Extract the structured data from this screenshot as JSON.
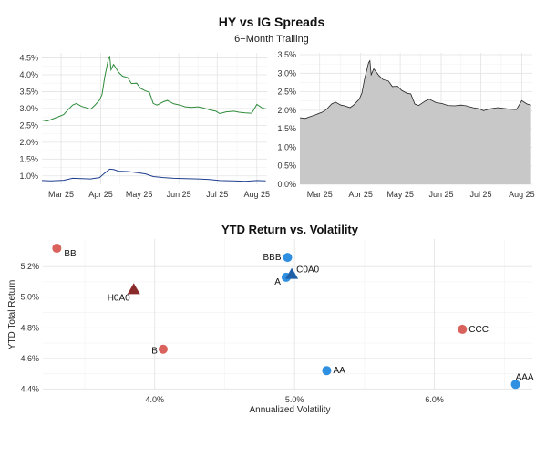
{
  "figure": {
    "title": "HY vs IG Spreads",
    "subtitle": "6−Month Trailing"
  },
  "chart_data": [
    {
      "type": "line",
      "panel": "top-left",
      "title": "",
      "xlabel": "",
      "ylabel": "",
      "x_tick_labels": [
        "Mar 25",
        "Apr 25",
        "May 25",
        "Jun 25",
        "Jul 25",
        "Aug 25"
      ],
      "y_tick_labels": [
        "1.0%",
        "1.5%",
        "2.0%",
        "2.5%",
        "3.0%",
        "3.5%",
        "4.0%",
        "4.5%"
      ],
      "ylim": [
        0.75,
        4.65
      ],
      "grid": true,
      "series": [
        {
          "color": "#2e8b3a",
          "points": [
            [
              "2025-02-14",
              2.66
            ],
            [
              "2025-02-18",
              2.63
            ],
            [
              "2025-02-21",
              2.67
            ],
            [
              "2025-02-26",
              2.74
            ],
            [
              "2025-03-03",
              2.82
            ],
            [
              "2025-03-06",
              2.95
            ],
            [
              "2025-03-10",
              3.1
            ],
            [
              "2025-03-13",
              3.15
            ],
            [
              "2025-03-17",
              3.06
            ],
            [
              "2025-03-20",
              3.03
            ],
            [
              "2025-03-24",
              2.98
            ],
            [
              "2025-03-27",
              3.08
            ],
            [
              "2025-03-31",
              3.25
            ],
            [
              "2025-04-02",
              3.42
            ],
            [
              "2025-04-04",
              3.92
            ],
            [
              "2025-04-07",
              4.48
            ],
            [
              "2025-04-08",
              4.54
            ],
            [
              "2025-04-09",
              4.15
            ],
            [
              "2025-04-11",
              4.31
            ],
            [
              "2025-04-15",
              4.07
            ],
            [
              "2025-04-18",
              3.96
            ],
            [
              "2025-04-22",
              3.92
            ],
            [
              "2025-04-25",
              3.74
            ],
            [
              "2025-04-29",
              3.75
            ],
            [
              "2025-05-02",
              3.6
            ],
            [
              "2025-05-06",
              3.52
            ],
            [
              "2025-05-09",
              3.48
            ],
            [
              "2025-05-12",
              3.15
            ],
            [
              "2025-05-15",
              3.1
            ],
            [
              "2025-05-20",
              3.2
            ],
            [
              "2025-05-23",
              3.24
            ],
            [
              "2025-05-28",
              3.14
            ],
            [
              "2025-06-02",
              3.1
            ],
            [
              "2025-06-06",
              3.05
            ],
            [
              "2025-06-11",
              3.03
            ],
            [
              "2025-06-16",
              3.05
            ],
            [
              "2025-06-20",
              3.02
            ],
            [
              "2025-06-25",
              2.96
            ],
            [
              "2025-06-30",
              2.92
            ],
            [
              "2025-07-03",
              2.85
            ],
            [
              "2025-07-08",
              2.9
            ],
            [
              "2025-07-14",
              2.92
            ],
            [
              "2025-07-18",
              2.89
            ],
            [
              "2025-07-23",
              2.87
            ],
            [
              "2025-07-28",
              2.86
            ],
            [
              "2025-08-01",
              3.12
            ],
            [
              "2025-08-05",
              3.02
            ],
            [
              "2025-08-08",
              2.99
            ]
          ]
        },
        {
          "color": "#1f3f8f",
          "points": [
            [
              "2025-02-14",
              0.86
            ],
            [
              "2025-02-21",
              0.85
            ],
            [
              "2025-03-03",
              0.87
            ],
            [
              "2025-03-10",
              0.93
            ],
            [
              "2025-03-17",
              0.92
            ],
            [
              "2025-03-24",
              0.91
            ],
            [
              "2025-03-31",
              0.95
            ],
            [
              "2025-04-04",
              1.08
            ],
            [
              "2025-04-08",
              1.2
            ],
            [
              "2025-04-11",
              1.19
            ],
            [
              "2025-04-15",
              1.14
            ],
            [
              "2025-04-22",
              1.13
            ],
            [
              "2025-04-29",
              1.1
            ],
            [
              "2025-05-06",
              1.06
            ],
            [
              "2025-05-12",
              0.98
            ],
            [
              "2025-05-20",
              0.95
            ],
            [
              "2025-05-28",
              0.93
            ],
            [
              "2025-06-06",
              0.92
            ],
            [
              "2025-06-16",
              0.91
            ],
            [
              "2025-06-25",
              0.89
            ],
            [
              "2025-07-03",
              0.86
            ],
            [
              "2025-07-14",
              0.85
            ],
            [
              "2025-07-23",
              0.84
            ],
            [
              "2025-08-01",
              0.86
            ],
            [
              "2025-08-08",
              0.85
            ]
          ]
        }
      ]
    },
    {
      "type": "area",
      "panel": "top-right",
      "title": "",
      "xlabel": "",
      "ylabel": "",
      "x_tick_labels": [
        "Mar 25",
        "Apr 25",
        "May 25",
        "Jun 25",
        "Jul 25",
        "Aug 25"
      ],
      "y_tick_labels": [
        "0.0%",
        "0.5%",
        "1.0%",
        "1.5%",
        "2.0%",
        "2.5%",
        "3.0%",
        "3.5%"
      ],
      "ylim": [
        0,
        3.55
      ],
      "grid": true,
      "fill_color": "#c8c8c8",
      "series": [
        {
          "points": [
            [
              "2025-02-14",
              1.8
            ],
            [
              "2025-02-18",
              1.78
            ],
            [
              "2025-02-21",
              1.82
            ],
            [
              "2025-02-26",
              1.88
            ],
            [
              "2025-03-03",
              1.95
            ],
            [
              "2025-03-06",
              2.02
            ],
            [
              "2025-03-10",
              2.17
            ],
            [
              "2025-03-13",
              2.22
            ],
            [
              "2025-03-17",
              2.14
            ],
            [
              "2025-03-20",
              2.12
            ],
            [
              "2025-03-24",
              2.07
            ],
            [
              "2025-03-27",
              2.15
            ],
            [
              "2025-03-31",
              2.3
            ],
            [
              "2025-04-02",
              2.47
            ],
            [
              "2025-04-04",
              2.85
            ],
            [
              "2025-04-07",
              3.28
            ],
            [
              "2025-04-08",
              3.34
            ],
            [
              "2025-04-09",
              2.96
            ],
            [
              "2025-04-11",
              3.12
            ],
            [
              "2025-04-15",
              2.93
            ],
            [
              "2025-04-18",
              2.83
            ],
            [
              "2025-04-22",
              2.79
            ],
            [
              "2025-04-25",
              2.64
            ],
            [
              "2025-04-29",
              2.65
            ],
            [
              "2025-05-02",
              2.54
            ],
            [
              "2025-05-06",
              2.46
            ],
            [
              "2025-05-09",
              2.44
            ],
            [
              "2025-05-12",
              2.17
            ],
            [
              "2025-05-15",
              2.13
            ],
            [
              "2025-05-20",
              2.25
            ],
            [
              "2025-05-23",
              2.3
            ],
            [
              "2025-05-28",
              2.21
            ],
            [
              "2025-06-02",
              2.18
            ],
            [
              "2025-06-06",
              2.13
            ],
            [
              "2025-06-11",
              2.12
            ],
            [
              "2025-06-16",
              2.14
            ],
            [
              "2025-06-20",
              2.12
            ],
            [
              "2025-06-25",
              2.07
            ],
            [
              "2025-06-30",
              2.04
            ],
            [
              "2025-07-03",
              1.99
            ],
            [
              "2025-07-08",
              2.04
            ],
            [
              "2025-07-14",
              2.07
            ],
            [
              "2025-07-18",
              2.05
            ],
            [
              "2025-07-23",
              2.03
            ],
            [
              "2025-07-28",
              2.02
            ],
            [
              "2025-08-01",
              2.26
            ],
            [
              "2025-08-05",
              2.17
            ],
            [
              "2025-08-08",
              2.14
            ]
          ]
        }
      ]
    },
    {
      "type": "scatter",
      "panel": "bottom",
      "title": "YTD Return vs. Volatility",
      "xlabel": "Annualized Volatility",
      "ylabel": "YTD Total Return",
      "xlim": [
        3.2,
        6.7
      ],
      "ylim": [
        4.39,
        5.38
      ],
      "x_tick_labels": [
        "4.0%",
        "5.0%",
        "6.0%"
      ],
      "x_ticks": [
        4.0,
        5.0,
        6.0
      ],
      "y_tick_labels": [
        "4.4%",
        "4.6%",
        "4.8%",
        "5.0%",
        "5.2%"
      ],
      "y_ticks": [
        4.4,
        4.6,
        4.8,
        5.0,
        5.2
      ],
      "grid": true,
      "points": [
        {
          "label": "BB",
          "x": 3.3,
          "y": 5.32,
          "shape": "circle",
          "color": "#d9625c",
          "label_pos": "right"
        },
        {
          "label": "H0A0",
          "x": 3.85,
          "y": 5.05,
          "shape": "triangle",
          "color": "#8b2a2a",
          "label_pos": "left"
        },
        {
          "label": "B",
          "x": 4.06,
          "y": 4.66,
          "shape": "circle",
          "color": "#d9625c",
          "label_pos": "left"
        },
        {
          "label": "BBB",
          "x": 4.95,
          "y": 5.26,
          "shape": "circle",
          "color": "#2f8fe0",
          "label_pos": "left"
        },
        {
          "label": "A",
          "x": 4.94,
          "y": 5.13,
          "shape": "circle",
          "color": "#2f8fe0",
          "label_pos": "left"
        },
        {
          "label": "C0A0",
          "x": 4.98,
          "y": 5.15,
          "shape": "triangle",
          "color": "#1f5fa8",
          "label_pos": "right"
        },
        {
          "label": "AA",
          "x": 5.23,
          "y": 4.52,
          "shape": "circle",
          "color": "#2f8fe0",
          "label_pos": "right"
        },
        {
          "label": "CCC",
          "x": 6.2,
          "y": 4.79,
          "shape": "circle",
          "color": "#d9625c",
          "label_pos": "right"
        },
        {
          "label": "AAA",
          "x": 6.58,
          "y": 4.43,
          "shape": "circle",
          "color": "#2f8fe0",
          "label_pos": "above"
        }
      ]
    }
  ]
}
